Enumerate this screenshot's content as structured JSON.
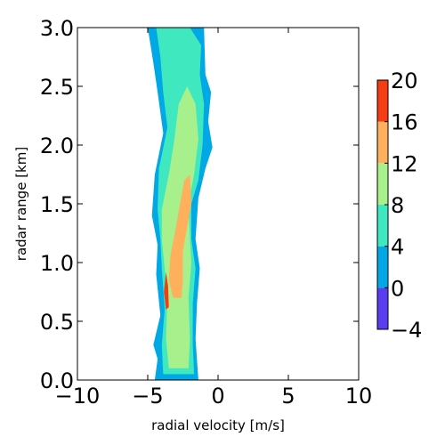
{
  "chart_data": {
    "type": "filled-contour",
    "xlabel": "radial velocity [m/s]",
    "ylabel": "radar range [km]",
    "xlim": [
      -10,
      10
    ],
    "ylim": [
      0,
      3
    ],
    "xticks": [
      "−10",
      "−5",
      "0",
      "5",
      "10"
    ],
    "xtick_values": [
      -10,
      -5,
      0,
      5,
      10
    ],
    "yticks": [
      "0.0",
      "0.5",
      "1.0",
      "1.5",
      "2.0",
      "2.5",
      "3.0"
    ],
    "ytick_values": [
      0,
      0.5,
      1.0,
      1.5,
      2.0,
      2.5,
      3.0
    ],
    "colorbar": {
      "levels": [
        -4,
        0,
        4,
        8,
        12,
        16,
        20
      ],
      "tick_labels": [
        "−4",
        "0",
        "4",
        "8",
        "12",
        "16",
        "20"
      ],
      "colors": [
        "#5a3df0",
        "#00a8e6",
        "#40e8c0",
        "#a8f08c",
        "#ffb05c",
        "#f53d14"
      ]
    },
    "bands": [
      {
        "level_range": [
          0,
          4
        ],
        "color": "#00a8e6",
        "outline": [
          [
            -5.0,
            3.0
          ],
          [
            -1.0,
            3.0
          ],
          [
            -0.9,
            2.6
          ],
          [
            -0.5,
            2.45
          ],
          [
            -0.7,
            2.2
          ],
          [
            -0.4,
            1.98
          ],
          [
            -0.9,
            1.8
          ],
          [
            -1.4,
            1.55
          ],
          [
            -1.6,
            1.2
          ],
          [
            -1.3,
            0.95
          ],
          [
            -1.5,
            0.65
          ],
          [
            -1.6,
            0.35
          ],
          [
            -1.4,
            0.0
          ],
          [
            -4.5,
            0.0
          ],
          [
            -4.3,
            0.18
          ],
          [
            -4.6,
            0.3
          ],
          [
            -4.1,
            0.55
          ],
          [
            -4.4,
            0.9
          ],
          [
            -4.3,
            1.15
          ],
          [
            -4.7,
            1.4
          ],
          [
            -4.5,
            1.75
          ],
          [
            -3.9,
            2.1
          ],
          [
            -4.3,
            2.45
          ],
          [
            -4.6,
            2.7
          ]
        ]
      },
      {
        "level_range": [
          4,
          8
        ],
        "color": "#40e8c0",
        "outline": [
          [
            -4.4,
            3.0
          ],
          [
            -2.0,
            3.0
          ],
          [
            -1.2,
            2.85
          ],
          [
            -1.3,
            2.6
          ],
          [
            -1.0,
            2.35
          ],
          [
            -1.1,
            2.0
          ],
          [
            -1.4,
            1.7
          ],
          [
            -1.9,
            1.5
          ],
          [
            -1.9,
            1.2
          ],
          [
            -1.6,
            0.95
          ],
          [
            -1.8,
            0.65
          ],
          [
            -1.8,
            0.3
          ],
          [
            -1.7,
            0.05
          ],
          [
            -3.9,
            0.05
          ],
          [
            -4.0,
            0.3
          ],
          [
            -3.8,
            0.6
          ],
          [
            -4.0,
            0.95
          ],
          [
            -4.1,
            1.2
          ],
          [
            -4.3,
            1.45
          ],
          [
            -4.2,
            1.8
          ],
          [
            -3.6,
            2.15
          ],
          [
            -3.9,
            2.45
          ],
          [
            -4.1,
            2.75
          ]
        ]
      },
      {
        "level_range": [
          8,
          12
        ],
        "color": "#a8f08c",
        "outline": [
          [
            -2.2,
            2.5
          ],
          [
            -1.6,
            2.35
          ],
          [
            -1.4,
            2.05
          ],
          [
            -1.7,
            1.75
          ],
          [
            -2.1,
            1.5
          ],
          [
            -2.0,
            1.2
          ],
          [
            -1.9,
            1.0
          ],
          [
            -2.1,
            0.7
          ],
          [
            -2.0,
            0.35
          ],
          [
            -2.1,
            0.1
          ],
          [
            -3.5,
            0.1
          ],
          [
            -3.7,
            0.35
          ],
          [
            -3.6,
            0.7
          ],
          [
            -3.8,
            0.95
          ],
          [
            -4.0,
            1.2
          ],
          [
            -4.0,
            1.45
          ],
          [
            -3.5,
            1.75
          ],
          [
            -3.1,
            2.05
          ],
          [
            -2.8,
            2.35
          ]
        ]
      },
      {
        "level_range": [
          12,
          16
        ],
        "color": "#ffb05c",
        "outline": [
          [
            -2.0,
            1.75
          ],
          [
            -1.9,
            1.5
          ],
          [
            -2.2,
            1.3
          ],
          [
            -2.5,
            1.1
          ],
          [
            -2.5,
            0.85
          ],
          [
            -2.6,
            0.7
          ],
          [
            -3.2,
            0.7
          ],
          [
            -3.5,
            0.85
          ],
          [
            -3.4,
            1.05
          ],
          [
            -3.0,
            1.3
          ],
          [
            -2.7,
            1.5
          ],
          [
            -2.4,
            1.7
          ]
        ]
      },
      {
        "level_range": [
          16,
          20
        ],
        "color": "#f53d14",
        "outline": [
          [
            -3.7,
            0.92
          ],
          [
            -3.55,
            0.8
          ],
          [
            -3.5,
            0.62
          ],
          [
            -3.7,
            0.6
          ],
          [
            -3.85,
            0.75
          ]
        ]
      }
    ]
  }
}
